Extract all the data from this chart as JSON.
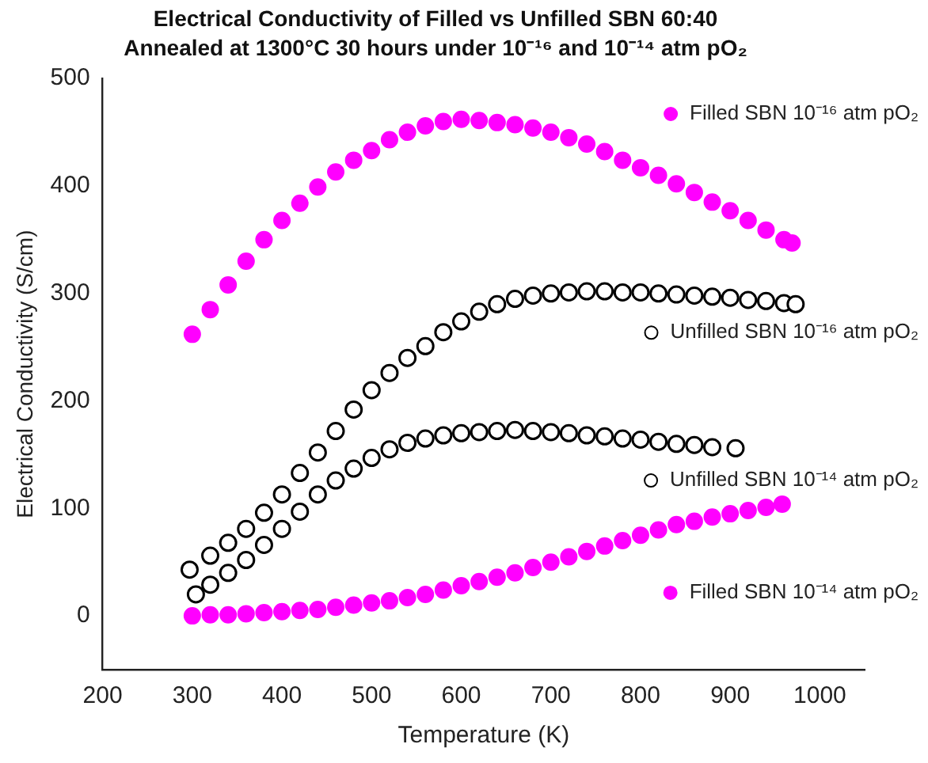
{
  "chart_data": {
    "type": "scatter",
    "title": "Electrical Conductivity of Filled vs Unfilled SBN 60:40",
    "subtitle": "Annealed at 1300°C 30 hours under 10⁻¹⁶ and 10⁻¹⁴ atm pO₂",
    "xlabel": "Temperature (K)",
    "ylabel": "Electrical Conductivity (S/cm)",
    "xlim": [
      200,
      1050
    ],
    "xticks": [
      200,
      300,
      400,
      500,
      600,
      700,
      800,
      900,
      1000
    ],
    "ylim": [
      -50,
      500
    ],
    "yticks": [
      0,
      100,
      200,
      300,
      400,
      500
    ],
    "grid": false,
    "legend": "right",
    "marker": "circle",
    "series": [
      {
        "name": "Filled SBN 10⁻¹⁶ atm pO₂",
        "color": "#ff00ff",
        "x": [
          300,
          320,
          340,
          360,
          380,
          400,
          420,
          440,
          460,
          480,
          500,
          520,
          540,
          560,
          580,
          600,
          620,
          640,
          660,
          680,
          700,
          720,
          740,
          760,
          780,
          800,
          820,
          840,
          860,
          880,
          900,
          920,
          940,
          960,
          969
        ],
        "values": [
          262,
          285,
          308,
          330,
          350,
          368,
          384,
          399,
          413,
          424,
          433,
          443,
          450,
          456,
          460,
          462,
          461,
          459,
          457,
          454,
          450,
          445,
          439,
          432,
          424,
          417,
          410,
          402,
          394,
          385,
          377,
          368,
          359,
          350,
          347
        ]
      },
      {
        "name": "Unfilled SBN 10⁻¹⁶ atm pO₂",
        "color": "#000000",
        "x": [
          297,
          320,
          340,
          360,
          380,
          400,
          420,
          440,
          460,
          480,
          500,
          520,
          540,
          560,
          580,
          600,
          620,
          640,
          660,
          680,
          700,
          720,
          740,
          760,
          780,
          800,
          820,
          840,
          860,
          880,
          900,
          920,
          940,
          960,
          973
        ],
        "values": [
          43,
          56,
          68,
          81,
          96,
          113,
          133,
          152,
          172,
          192,
          210,
          226,
          240,
          251,
          264,
          274,
          283,
          290,
          295,
          298,
          300,
          301,
          302,
          302,
          301,
          301,
          300,
          299,
          298,
          297,
          296,
          294,
          293,
          291,
          290
        ]
      },
      {
        "name": "Unfilled SBN 10⁻¹⁴ atm pO₂",
        "color": "#000000",
        "x": [
          304,
          320,
          340,
          360,
          380,
          400,
          420,
          440,
          460,
          480,
          500,
          520,
          540,
          560,
          580,
          600,
          620,
          640,
          660,
          680,
          700,
          720,
          740,
          760,
          780,
          800,
          820,
          840,
          860,
          880,
          906
        ],
        "values": [
          20,
          29,
          40,
          52,
          66,
          81,
          97,
          113,
          126,
          137,
          147,
          155,
          161,
          165,
          168,
          170,
          171,
          172,
          173,
          172,
          171,
          170,
          168,
          167,
          165,
          164,
          162,
          160,
          159,
          157,
          156
        ]
      },
      {
        "name": "Filled SBN 10⁻¹⁴ atm pO₂",
        "color": "#ff00ff",
        "x": [
          300,
          320,
          340,
          360,
          380,
          400,
          420,
          440,
          460,
          480,
          500,
          520,
          540,
          560,
          580,
          600,
          620,
          640,
          660,
          680,
          700,
          720,
          740,
          760,
          780,
          800,
          820,
          840,
          860,
          880,
          900,
          920,
          940,
          958
        ],
        "values": [
          0,
          1,
          1,
          2,
          3,
          4,
          5,
          6,
          8,
          10,
          12,
          14,
          17,
          20,
          24,
          28,
          32,
          36,
          40,
          45,
          50,
          55,
          60,
          65,
          70,
          75,
          80,
          85,
          88,
          92,
          95,
          98,
          101,
          104
        ]
      }
    ]
  }
}
